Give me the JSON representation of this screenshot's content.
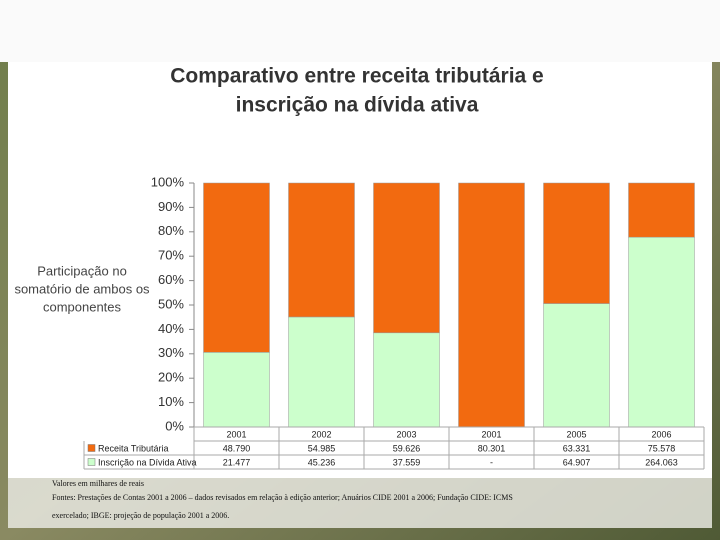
{
  "chart_data": {
    "type": "bar",
    "stacked": true,
    "title": "Comparativo entre receita tributária e",
    "title_line2": "inscrição na dívida ativa",
    "y_label": [
      "Participação no",
      "somatório de ambos os",
      "componentes"
    ],
    "categories": [
      "2001",
      "2002",
      "2003",
      "2001",
      "2005",
      "2006"
    ],
    "series": [
      {
        "name": "Receita Tributária",
        "color": "#f26a10",
        "values": [
          69.4,
          54.9,
          61.4,
          100,
          49.4,
          22.2
        ],
        "table_values": [
          "48.790",
          "54.985",
          "59.626",
          "80.301",
          "63.331",
          "75.578"
        ]
      },
      {
        "name": "Inscrição na Dívida Ativa",
        "color": "#ccffcc",
        "values": [
          30.6,
          45.1,
          38.6,
          0,
          50.6,
          77.8
        ],
        "table_values": [
          "21.477",
          "45.236",
          "37.559",
          "-",
          "64.907",
          "264.063"
        ]
      }
    ],
    "ylim": [
      0,
      100
    ],
    "yticks": [
      {
        "value": 0,
        "label": "0%"
      },
      {
        "value": 10,
        "label": "10%"
      },
      {
        "value": 20,
        "label": "20%"
      },
      {
        "value": 30,
        "label": "30%"
      },
      {
        "value": 40,
        "label": "40%"
      },
      {
        "value": 50,
        "label": "50%"
      },
      {
        "value": 60,
        "label": "60%"
      },
      {
        "value": 70,
        "label": "70%"
      },
      {
        "value": 80,
        "label": "80%"
      },
      {
        "value": 90,
        "label": "90%"
      },
      {
        "value": 100,
        "label": "100%"
      }
    ],
    "notes": [
      "Valores em milhares de reais",
      "Fontes: Prestações de Contas 2001 a 2006 – dados revisados em relação à edição anterior; Anuários CIDE 2001 a 2006; Fundação CIDE: ICMS",
      "exercelado; IBGE: projeção de população 2001 a 2006."
    ]
  }
}
